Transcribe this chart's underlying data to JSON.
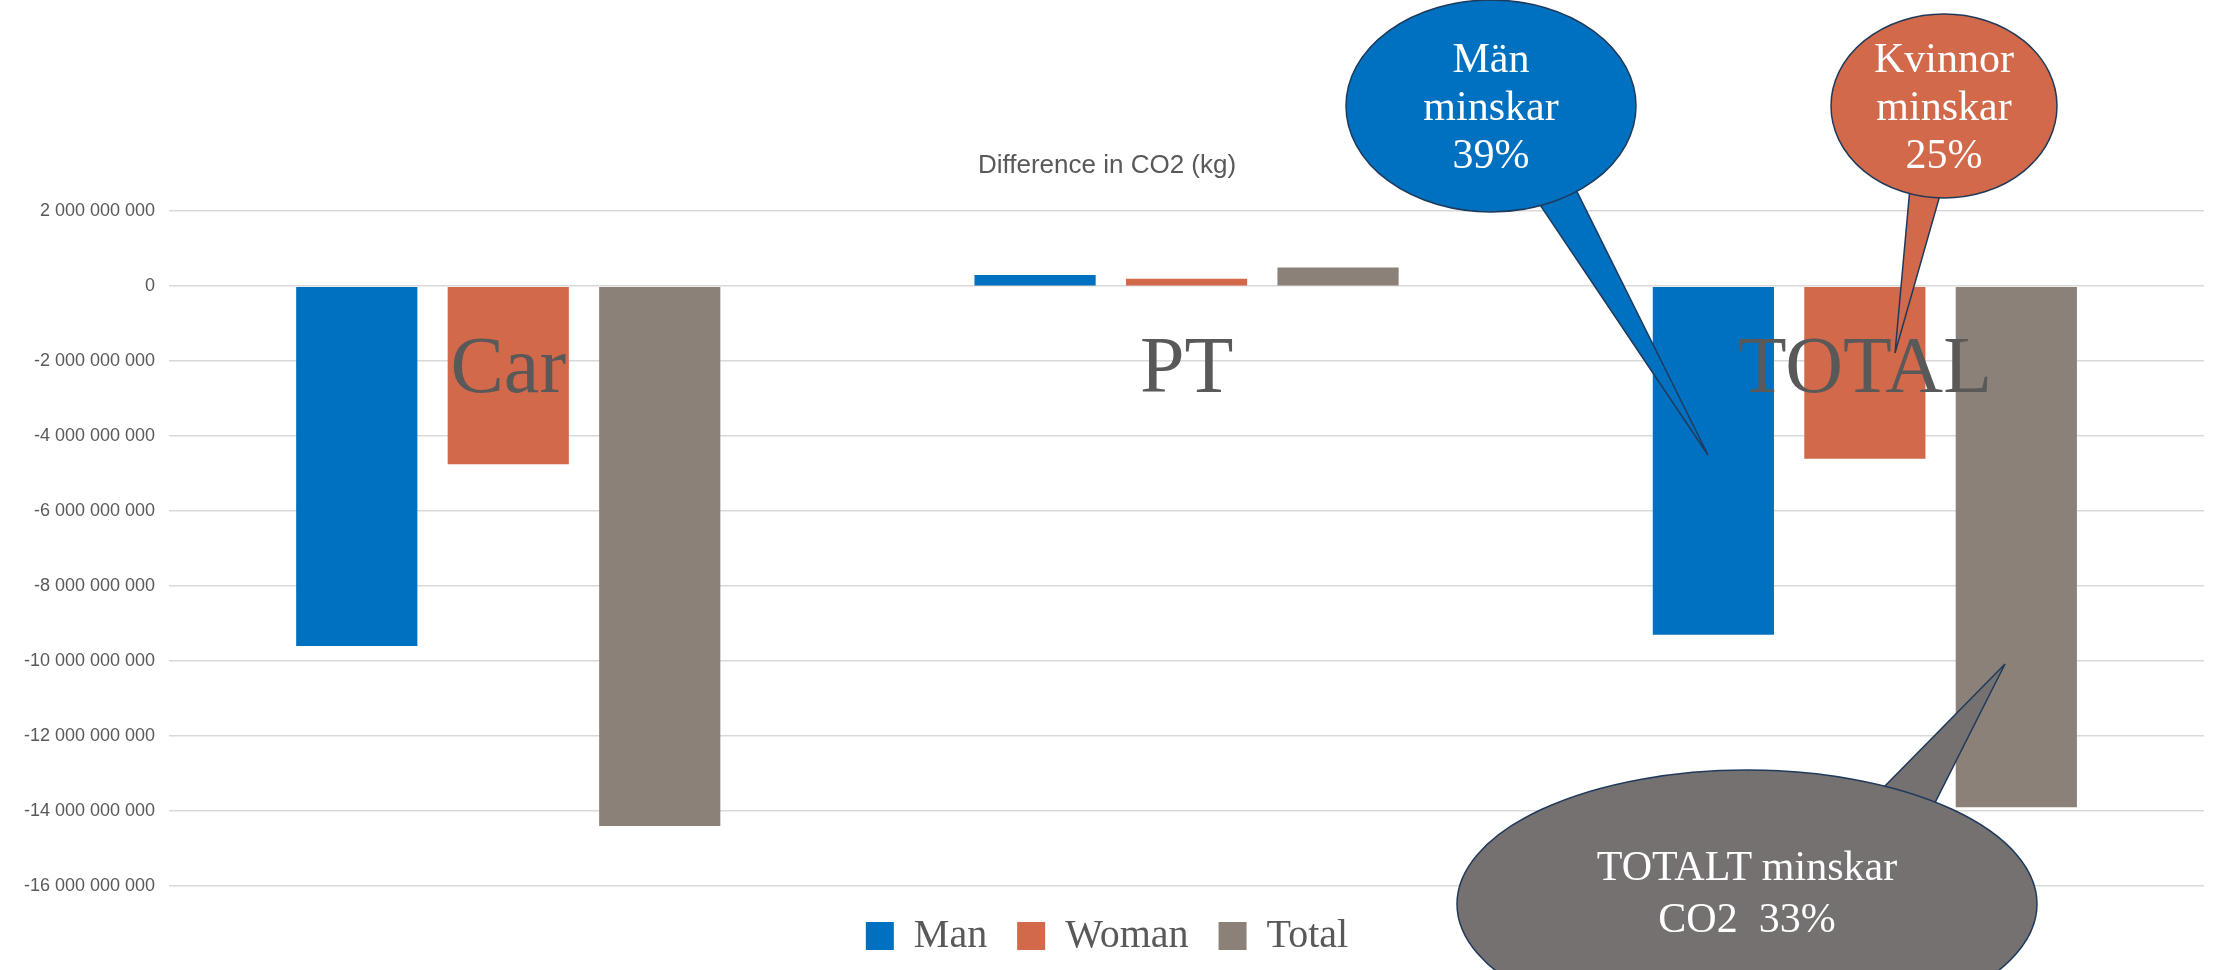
{
  "chart_data": {
    "type": "bar",
    "title": "Difference in CO2 (kg)",
    "categories": [
      "Car",
      "PT",
      "TOTAL"
    ],
    "series": [
      {
        "name": "Man",
        "color": "#0070c0",
        "values": [
          -9600000000,
          300000000,
          -9300000000
        ]
      },
      {
        "name": "Woman",
        "color": "#d2694a",
        "values": [
          -4750000000,
          200000000,
          -4600000000
        ]
      },
      {
        "name": "Total",
        "color": "#8b8178",
        "values": [
          -14400000000,
          500000000,
          -13900000000
        ]
      }
    ],
    "ylim": [
      -16000000000,
      2000000000
    ],
    "yticks": [
      {
        "value": -16000000000,
        "label": "-16 000 000 000"
      },
      {
        "value": -14000000000,
        "label": "-14 000 000 000"
      },
      {
        "value": -12000000000,
        "label": "-12 000 000 000"
      },
      {
        "value": -10000000000,
        "label": "-10 000 000 000"
      },
      {
        "value": -8000000000,
        "label": "-8 000 000 000"
      },
      {
        "value": -6000000000,
        "label": "-6 000 000 000"
      },
      {
        "value": -4000000000,
        "label": "-4 000 000 000"
      },
      {
        "value": -2000000000,
        "label": "-2 000 000 000"
      },
      {
        "value": 0,
        "label": "0"
      },
      {
        "value": 2000000000,
        "label": "2 000 000 000"
      }
    ],
    "grid": "y",
    "legend": "bottom",
    "annotations": [
      "Män\nminskar\n39%",
      "Kvinnor\nminskar\n25%",
      "TOTALT minskar\nCO2  33%"
    ]
  }
}
